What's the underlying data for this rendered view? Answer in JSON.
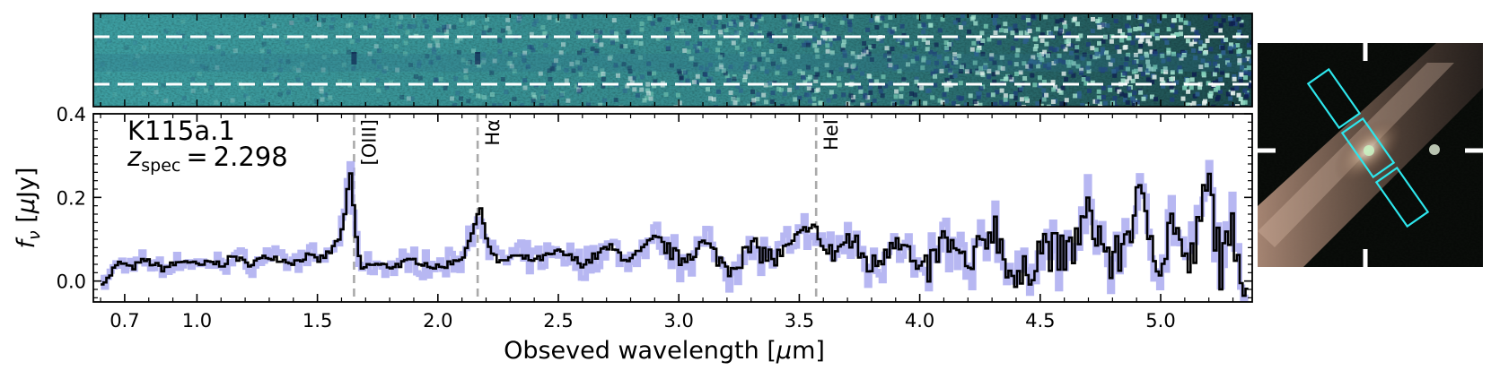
{
  "chart_data": {
    "type": "line",
    "title": "",
    "object_name": "K115a.1",
    "redshift": {
      "symbol": "z",
      "subscript": "spec",
      "equals": "=",
      "value": "2.298"
    },
    "xlabel_parts": {
      "pre": "Obseved wavelength [",
      "mu": "μ",
      "post": "m]"
    },
    "ylabel_parts": {
      "f": "f",
      "sub": "ν",
      "unit_pre": " [",
      "mu": "μ",
      "unit_post": "Jy]"
    },
    "xlim": [
      0.57,
      5.38
    ],
    "ylim": [
      -0.05,
      0.4
    ],
    "x_ticks": [
      0.7,
      1.0,
      1.5,
      2.0,
      2.5,
      3.0,
      3.5,
      4.0,
      4.5,
      5.0
    ],
    "x_tick_labels": [
      "0.7",
      "1.0",
      "1.5",
      "2.0",
      "2.5",
      "3.0",
      "3.5",
      "4.0",
      "4.5",
      "5.0"
    ],
    "y_ticks": [
      0.0,
      0.2,
      0.4
    ],
    "y_tick_labels": [
      "0.0",
      "0.2",
      "0.4"
    ],
    "emission_lines": [
      {
        "label": "[OIII]",
        "wavelength": 1.652
      },
      {
        "label": "Hα",
        "wavelength": 2.165
      },
      {
        "label": "HeI",
        "wavelength": 3.57
      }
    ],
    "series": [
      {
        "name": "flux",
        "color": "#000000"
      },
      {
        "name": "error",
        "color": "#aaaaf0"
      }
    ],
    "spectrum_sample": {
      "x": [
        0.62,
        0.65,
        0.68,
        0.72,
        0.78,
        0.85,
        0.9,
        0.95,
        1.0,
        1.05,
        1.1,
        1.15,
        1.2,
        1.25,
        1.3,
        1.35,
        1.4,
        1.45,
        1.5,
        1.55,
        1.6,
        1.63,
        1.66,
        1.68,
        1.72,
        1.8,
        1.9,
        2.0,
        2.1,
        2.14,
        2.17,
        2.2,
        2.25,
        2.3,
        2.4,
        2.5,
        2.6,
        2.7,
        2.8,
        2.9,
        3.0,
        3.1,
        3.2,
        3.3,
        3.4,
        3.5,
        3.56,
        3.58,
        3.62,
        3.7,
        3.8,
        3.9,
        4.0,
        4.1,
        4.2,
        4.3,
        4.4,
        4.5,
        4.6,
        4.7,
        4.8,
        4.9,
        5.0,
        5.05,
        5.1,
        5.15,
        5.19,
        5.22,
        5.25,
        5.3,
        5.35
      ],
      "y": [
        0.0,
        0.03,
        0.045,
        0.03,
        0.05,
        0.03,
        0.04,
        0.05,
        0.035,
        0.045,
        0.04,
        0.06,
        0.04,
        0.05,
        0.06,
        0.05,
        0.045,
        0.06,
        0.05,
        0.07,
        0.12,
        0.27,
        0.08,
        0.03,
        0.04,
        0.035,
        0.05,
        0.03,
        0.06,
        0.12,
        0.18,
        0.09,
        0.04,
        0.06,
        0.05,
        0.07,
        0.04,
        0.08,
        0.05,
        0.1,
        0.05,
        0.09,
        0.03,
        0.08,
        0.05,
        0.1,
        0.14,
        0.09,
        0.06,
        0.1,
        0.03,
        0.12,
        0.0,
        0.1,
        0.02,
        0.14,
        -0.02,
        0.09,
        0.05,
        0.16,
        0.03,
        0.19,
        0.05,
        0.16,
        0.02,
        0.1,
        0.24,
        0.14,
        0.02,
        0.12,
        0.0
      ]
    },
    "panels": [
      "2D spectrum",
      "1D spectrum",
      "image cutout"
    ]
  }
}
